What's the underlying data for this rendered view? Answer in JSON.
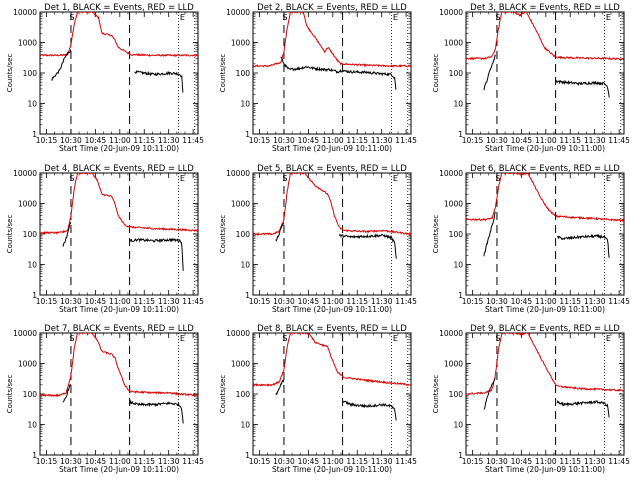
{
  "figure": {
    "ylabel": "Counts/sec",
    "xlabel": "Start Time (20-Jun-09 10:11:00)",
    "x_ticks": [
      "10:15",
      "10:30",
      "10:45",
      "11:00",
      "11:15",
      "11:30",
      "11:45"
    ],
    "y_ticks": [
      "1",
      "10",
      "100",
      "1000",
      "10000"
    ],
    "marker_S": "S",
    "marker_E": "E",
    "colors": {
      "events": "#000000",
      "lld": "#dd0000"
    }
  },
  "chart_data": [
    {
      "type": "line",
      "title": "Det 1, BLACK = Events, RED = LLD",
      "xlabel": "Start Time (20-Jun-09 10:11:00)",
      "ylabel": "Counts/sec",
      "x_unit": "minutes after 10:11:00",
      "xlim": [
        0,
        97
      ],
      "ylim": [
        1,
        10000
      ],
      "yscale": "log",
      "vlines_dashed": [
        19,
        55
      ],
      "vlines_dotted": [
        85,
        95
      ],
      "lld_points": [
        [
          0,
          380
        ],
        [
          12,
          380
        ],
        [
          17,
          400
        ],
        [
          19,
          850
        ],
        [
          21,
          4000
        ],
        [
          23,
          10000
        ],
        [
          32,
          10000
        ],
        [
          36,
          6500
        ],
        [
          38,
          2000
        ],
        [
          44,
          1700
        ],
        [
          46,
          1200
        ],
        [
          48,
          700
        ],
        [
          54,
          450
        ],
        [
          56,
          400
        ],
        [
          70,
          380
        ],
        [
          85,
          380
        ],
        [
          97,
          380
        ]
      ],
      "events_points": [
        [
          7,
          60
        ],
        [
          12,
          120
        ],
        [
          15,
          300
        ],
        [
          17,
          450
        ],
        [
          19,
          560
        ],
        [
          58,
          110
        ],
        [
          70,
          90
        ],
        [
          80,
          100
        ],
        [
          85,
          95
        ],
        [
          87,
          80
        ],
        [
          88,
          15
        ]
      ]
    },
    {
      "type": "line",
      "title": "Det 2, BLACK = Events, RED = LLD",
      "xlabel": "Start Time (20-Jun-09 10:11:00)",
      "ylabel": "Counts/sec",
      "x_unit": "minutes after 10:11:00",
      "xlim": [
        0,
        97
      ],
      "ylim": [
        1,
        10000
      ],
      "yscale": "log",
      "vlines_dashed": [
        19,
        55
      ],
      "vlines_dotted": [
        85,
        95
      ],
      "lld_points": [
        [
          0,
          170
        ],
        [
          10,
          170
        ],
        [
          17,
          220
        ],
        [
          19,
          500
        ],
        [
          21,
          3000
        ],
        [
          23,
          10000
        ],
        [
          31,
          10000
        ],
        [
          33,
          3500
        ],
        [
          38,
          1500
        ],
        [
          44,
          500
        ],
        [
          46,
          700
        ],
        [
          48,
          500
        ],
        [
          52,
          250
        ],
        [
          54,
          200
        ],
        [
          70,
          180
        ],
        [
          85,
          170
        ],
        [
          97,
          170
        ]
      ],
      "events_points": [
        [
          17,
          350
        ],
        [
          19,
          200
        ],
        [
          22,
          130
        ],
        [
          28,
          140
        ],
        [
          33,
          160
        ],
        [
          38,
          140
        ],
        [
          44,
          130
        ],
        [
          47,
          130
        ],
        [
          52,
          110
        ],
        [
          54,
          120
        ],
        [
          60,
          110
        ],
        [
          70,
          105
        ],
        [
          78,
          95
        ],
        [
          85,
          90
        ],
        [
          87,
          70
        ],
        [
          88,
          20
        ]
      ]
    },
    {
      "type": "line",
      "title": "Det 3, BLACK = Events, RED = LLD",
      "xlabel": "Start Time (20-Jun-09 10:11:00)",
      "ylabel": "Counts/sec",
      "x_unit": "minutes after 10:11:00",
      "xlim": [
        0,
        97
      ],
      "ylim": [
        1,
        10000
      ],
      "yscale": "log",
      "vlines_dashed": [
        19,
        55
      ],
      "vlines_dotted": [
        85,
        95
      ],
      "lld_points": [
        [
          0,
          300
        ],
        [
          12,
          300
        ],
        [
          16,
          350
        ],
        [
          18,
          600
        ],
        [
          20,
          3000
        ],
        [
          22,
          10000
        ],
        [
          29,
          10000
        ],
        [
          33,
          8000
        ],
        [
          37,
          10000
        ],
        [
          44,
          2000
        ],
        [
          48,
          700
        ],
        [
          52,
          450
        ],
        [
          55,
          330
        ],
        [
          70,
          310
        ],
        [
          85,
          300
        ],
        [
          97,
          290
        ]
      ],
      "events_points": [
        [
          11,
          30
        ],
        [
          13,
          60
        ],
        [
          15,
          140
        ],
        [
          17,
          250
        ],
        [
          18,
          400
        ],
        [
          55,
          55
        ],
        [
          60,
          50
        ],
        [
          70,
          45
        ],
        [
          80,
          48
        ],
        [
          85,
          45
        ],
        [
          87,
          35
        ],
        [
          88,
          15
        ]
      ]
    },
    {
      "type": "line",
      "title": "Det 4, BLACK = Events, RED = LLD",
      "xlabel": "Start Time (20-Jun-09 10:11:00)",
      "ylabel": "Counts/sec",
      "x_unit": "minutes after 10:11:00",
      "xlim": [
        0,
        97
      ],
      "ylim": [
        1,
        10000
      ],
      "yscale": "log",
      "vlines_dashed": [
        19,
        55
      ],
      "vlines_dotted": [
        85,
        95
      ],
      "lld_points": [
        [
          0,
          110
        ],
        [
          12,
          110
        ],
        [
          17,
          130
        ],
        [
          19,
          400
        ],
        [
          21,
          3000
        ],
        [
          23,
          10000
        ],
        [
          32,
          10000
        ],
        [
          35,
          6000
        ],
        [
          38,
          2000
        ],
        [
          44,
          1700
        ],
        [
          46,
          1000
        ],
        [
          48,
          400
        ],
        [
          52,
          200
        ],
        [
          55,
          170
        ],
        [
          70,
          150
        ],
        [
          85,
          140
        ],
        [
          97,
          130
        ]
      ],
      "events_points": [
        [
          14,
          40
        ],
        [
          16,
          70
        ],
        [
          17,
          110
        ],
        [
          18,
          180
        ],
        [
          19,
          250
        ],
        [
          55,
          60
        ],
        [
          60,
          65
        ],
        [
          70,
          60
        ],
        [
          80,
          65
        ],
        [
          85,
          62
        ],
        [
          87,
          55
        ],
        [
          88,
          5
        ]
      ]
    },
    {
      "type": "line",
      "title": "Det 5, BLACK = Events, RED = LLD",
      "xlabel": "Start Time (20-Jun-09 10:11:00)",
      "ylabel": "Counts/sec",
      "x_unit": "minutes after 10:11:00",
      "xlim": [
        0,
        97
      ],
      "ylim": [
        1,
        10000
      ],
      "yscale": "log",
      "vlines_dashed": [
        19,
        55
      ],
      "vlines_dotted": [
        85,
        95
      ],
      "lld_points": [
        [
          0,
          100
        ],
        [
          12,
          100
        ],
        [
          16,
          120
        ],
        [
          19,
          300
        ],
        [
          21,
          2500
        ],
        [
          23,
          10000
        ],
        [
          32,
          10000
        ],
        [
          35,
          6000
        ],
        [
          38,
          4000
        ],
        [
          46,
          2000
        ],
        [
          48,
          1000
        ],
        [
          50,
          400
        ],
        [
          53,
          160
        ],
        [
          56,
          130
        ],
        [
          70,
          120
        ],
        [
          80,
          130
        ],
        [
          85,
          120
        ],
        [
          97,
          100
        ]
      ],
      "events_points": [
        [
          14,
          60
        ],
        [
          16,
          100
        ],
        [
          17,
          150
        ],
        [
          18,
          200
        ],
        [
          19,
          230
        ],
        [
          53,
          90
        ],
        [
          60,
          80
        ],
        [
          70,
          85
        ],
        [
          80,
          90
        ],
        [
          85,
          75
        ],
        [
          87,
          50
        ],
        [
          88,
          15
        ]
      ]
    },
    {
      "type": "line",
      "title": "Det 6, BLACK = Events, RED = LLD",
      "xlabel": "Start Time (20-Jun-09 10:11:00)",
      "ylabel": "Counts/sec",
      "x_unit": "minutes after 10:11:00",
      "xlim": [
        0,
        97
      ],
      "ylim": [
        1,
        10000
      ],
      "yscale": "log",
      "vlines_dashed": [
        19,
        55
      ],
      "vlines_dotted": [
        85,
        95
      ],
      "lld_points": [
        [
          0,
          300
        ],
        [
          12,
          300
        ],
        [
          16,
          330
        ],
        [
          18,
          700
        ],
        [
          20,
          3500
        ],
        [
          22,
          10000
        ],
        [
          30,
          10000
        ],
        [
          34,
          9000
        ],
        [
          38,
          10000
        ],
        [
          46,
          1500
        ],
        [
          50,
          700
        ],
        [
          54,
          420
        ],
        [
          56,
          380
        ],
        [
          70,
          340
        ],
        [
          80,
          320
        ],
        [
          85,
          300
        ],
        [
          97,
          280
        ]
      ],
      "events_points": [
        [
          11,
          20
        ],
        [
          13,
          50
        ],
        [
          15,
          120
        ],
        [
          17,
          300
        ],
        [
          18,
          500
        ],
        [
          56,
          80
        ],
        [
          60,
          70
        ],
        [
          70,
          80
        ],
        [
          80,
          85
        ],
        [
          85,
          80
        ],
        [
          87,
          60
        ],
        [
          88,
          12
        ]
      ]
    },
    {
      "type": "line",
      "title": "Det 7, BLACK = Events, RED = LLD",
      "xlabel": "Start Time (20-Jun-09 10:11:00)",
      "ylabel": "Counts/sec",
      "x_unit": "minutes after 10:11:00",
      "xlim": [
        0,
        97
      ],
      "ylim": [
        1,
        10000
      ],
      "yscale": "log",
      "vlines_dashed": [
        19,
        55
      ],
      "vlines_dotted": [
        85,
        95
      ],
      "lld_points": [
        [
          0,
          90
        ],
        [
          12,
          90
        ],
        [
          16,
          110
        ],
        [
          19,
          400
        ],
        [
          21,
          3000
        ],
        [
          23,
          10000
        ],
        [
          32,
          10000
        ],
        [
          35,
          6000
        ],
        [
          38,
          2500
        ],
        [
          44,
          2000
        ],
        [
          46,
          1500
        ],
        [
          48,
          700
        ],
        [
          52,
          200
        ],
        [
          55,
          120
        ],
        [
          70,
          110
        ],
        [
          80,
          110
        ],
        [
          85,
          100
        ],
        [
          97,
          90
        ]
      ],
      "events_points": [
        [
          14,
          50
        ],
        [
          16,
          80
        ],
        [
          17,
          120
        ],
        [
          18,
          180
        ],
        [
          19,
          200
        ],
        [
          55,
          55
        ],
        [
          60,
          45
        ],
        [
          70,
          45
        ],
        [
          80,
          50
        ],
        [
          85,
          45
        ],
        [
          87,
          35
        ],
        [
          88,
          10
        ]
      ]
    },
    {
      "type": "line",
      "title": "Det 8, BLACK = Events, RED = LLD",
      "xlabel": "Start Time (20-Jun-09 10:11:00)",
      "ylabel": "Counts/sec",
      "x_unit": "minutes after 10:11:00",
      "xlim": [
        0,
        97
      ],
      "ylim": [
        1,
        10000
      ],
      "yscale": "log",
      "vlines_dashed": [
        19,
        55
      ],
      "vlines_dotted": [
        85,
        95
      ],
      "lld_points": [
        [
          0,
          200
        ],
        [
          12,
          200
        ],
        [
          16,
          250
        ],
        [
          19,
          600
        ],
        [
          21,
          3500
        ],
        [
          23,
          10000
        ],
        [
          32,
          10000
        ],
        [
          35,
          9000
        ],
        [
          38,
          5000
        ],
        [
          46,
          3500
        ],
        [
          48,
          1600
        ],
        [
          52,
          500
        ],
        [
          56,
          350
        ],
        [
          70,
          280
        ],
        [
          85,
          230
        ],
        [
          97,
          200
        ]
      ],
      "events_points": [
        [
          14,
          90
        ],
        [
          16,
          140
        ],
        [
          17,
          200
        ],
        [
          18,
          250
        ],
        [
          19,
          280
        ],
        [
          55,
          60
        ],
        [
          60,
          45
        ],
        [
          70,
          40
        ],
        [
          80,
          45
        ],
        [
          85,
          40
        ],
        [
          87,
          30
        ],
        [
          88,
          12
        ]
      ]
    },
    {
      "type": "line",
      "title": "Det 9, BLACK = Events, RED = LLD",
      "xlabel": "Start Time (20-Jun-09 10:11:00)",
      "ylabel": "Counts/sec",
      "x_unit": "minutes after 10:11:00",
      "xlim": [
        0,
        97
      ],
      "ylim": [
        1,
        10000
      ],
      "yscale": "log",
      "vlines_dashed": [
        19,
        55
      ],
      "vlines_dotted": [
        85,
        95
      ],
      "lld_points": [
        [
          0,
          100
        ],
        [
          12,
          110
        ],
        [
          16,
          140
        ],
        [
          18,
          400
        ],
        [
          20,
          3000
        ],
        [
          22,
          10000
        ],
        [
          30,
          10000
        ],
        [
          34,
          9000
        ],
        [
          38,
          10000
        ],
        [
          46,
          1500
        ],
        [
          50,
          600
        ],
        [
          54,
          250
        ],
        [
          56,
          180
        ],
        [
          70,
          150
        ],
        [
          85,
          140
        ],
        [
          97,
          130
        ]
      ],
      "events_points": [
        [
          11,
          30
        ],
        [
          13,
          80
        ],
        [
          15,
          150
        ],
        [
          17,
          250
        ],
        [
          18,
          350
        ],
        [
          56,
          55
        ],
        [
          60,
          45
        ],
        [
          70,
          50
        ],
        [
          80,
          55
        ],
        [
          85,
          50
        ],
        [
          87,
          40
        ],
        [
          88,
          15
        ]
      ]
    }
  ]
}
